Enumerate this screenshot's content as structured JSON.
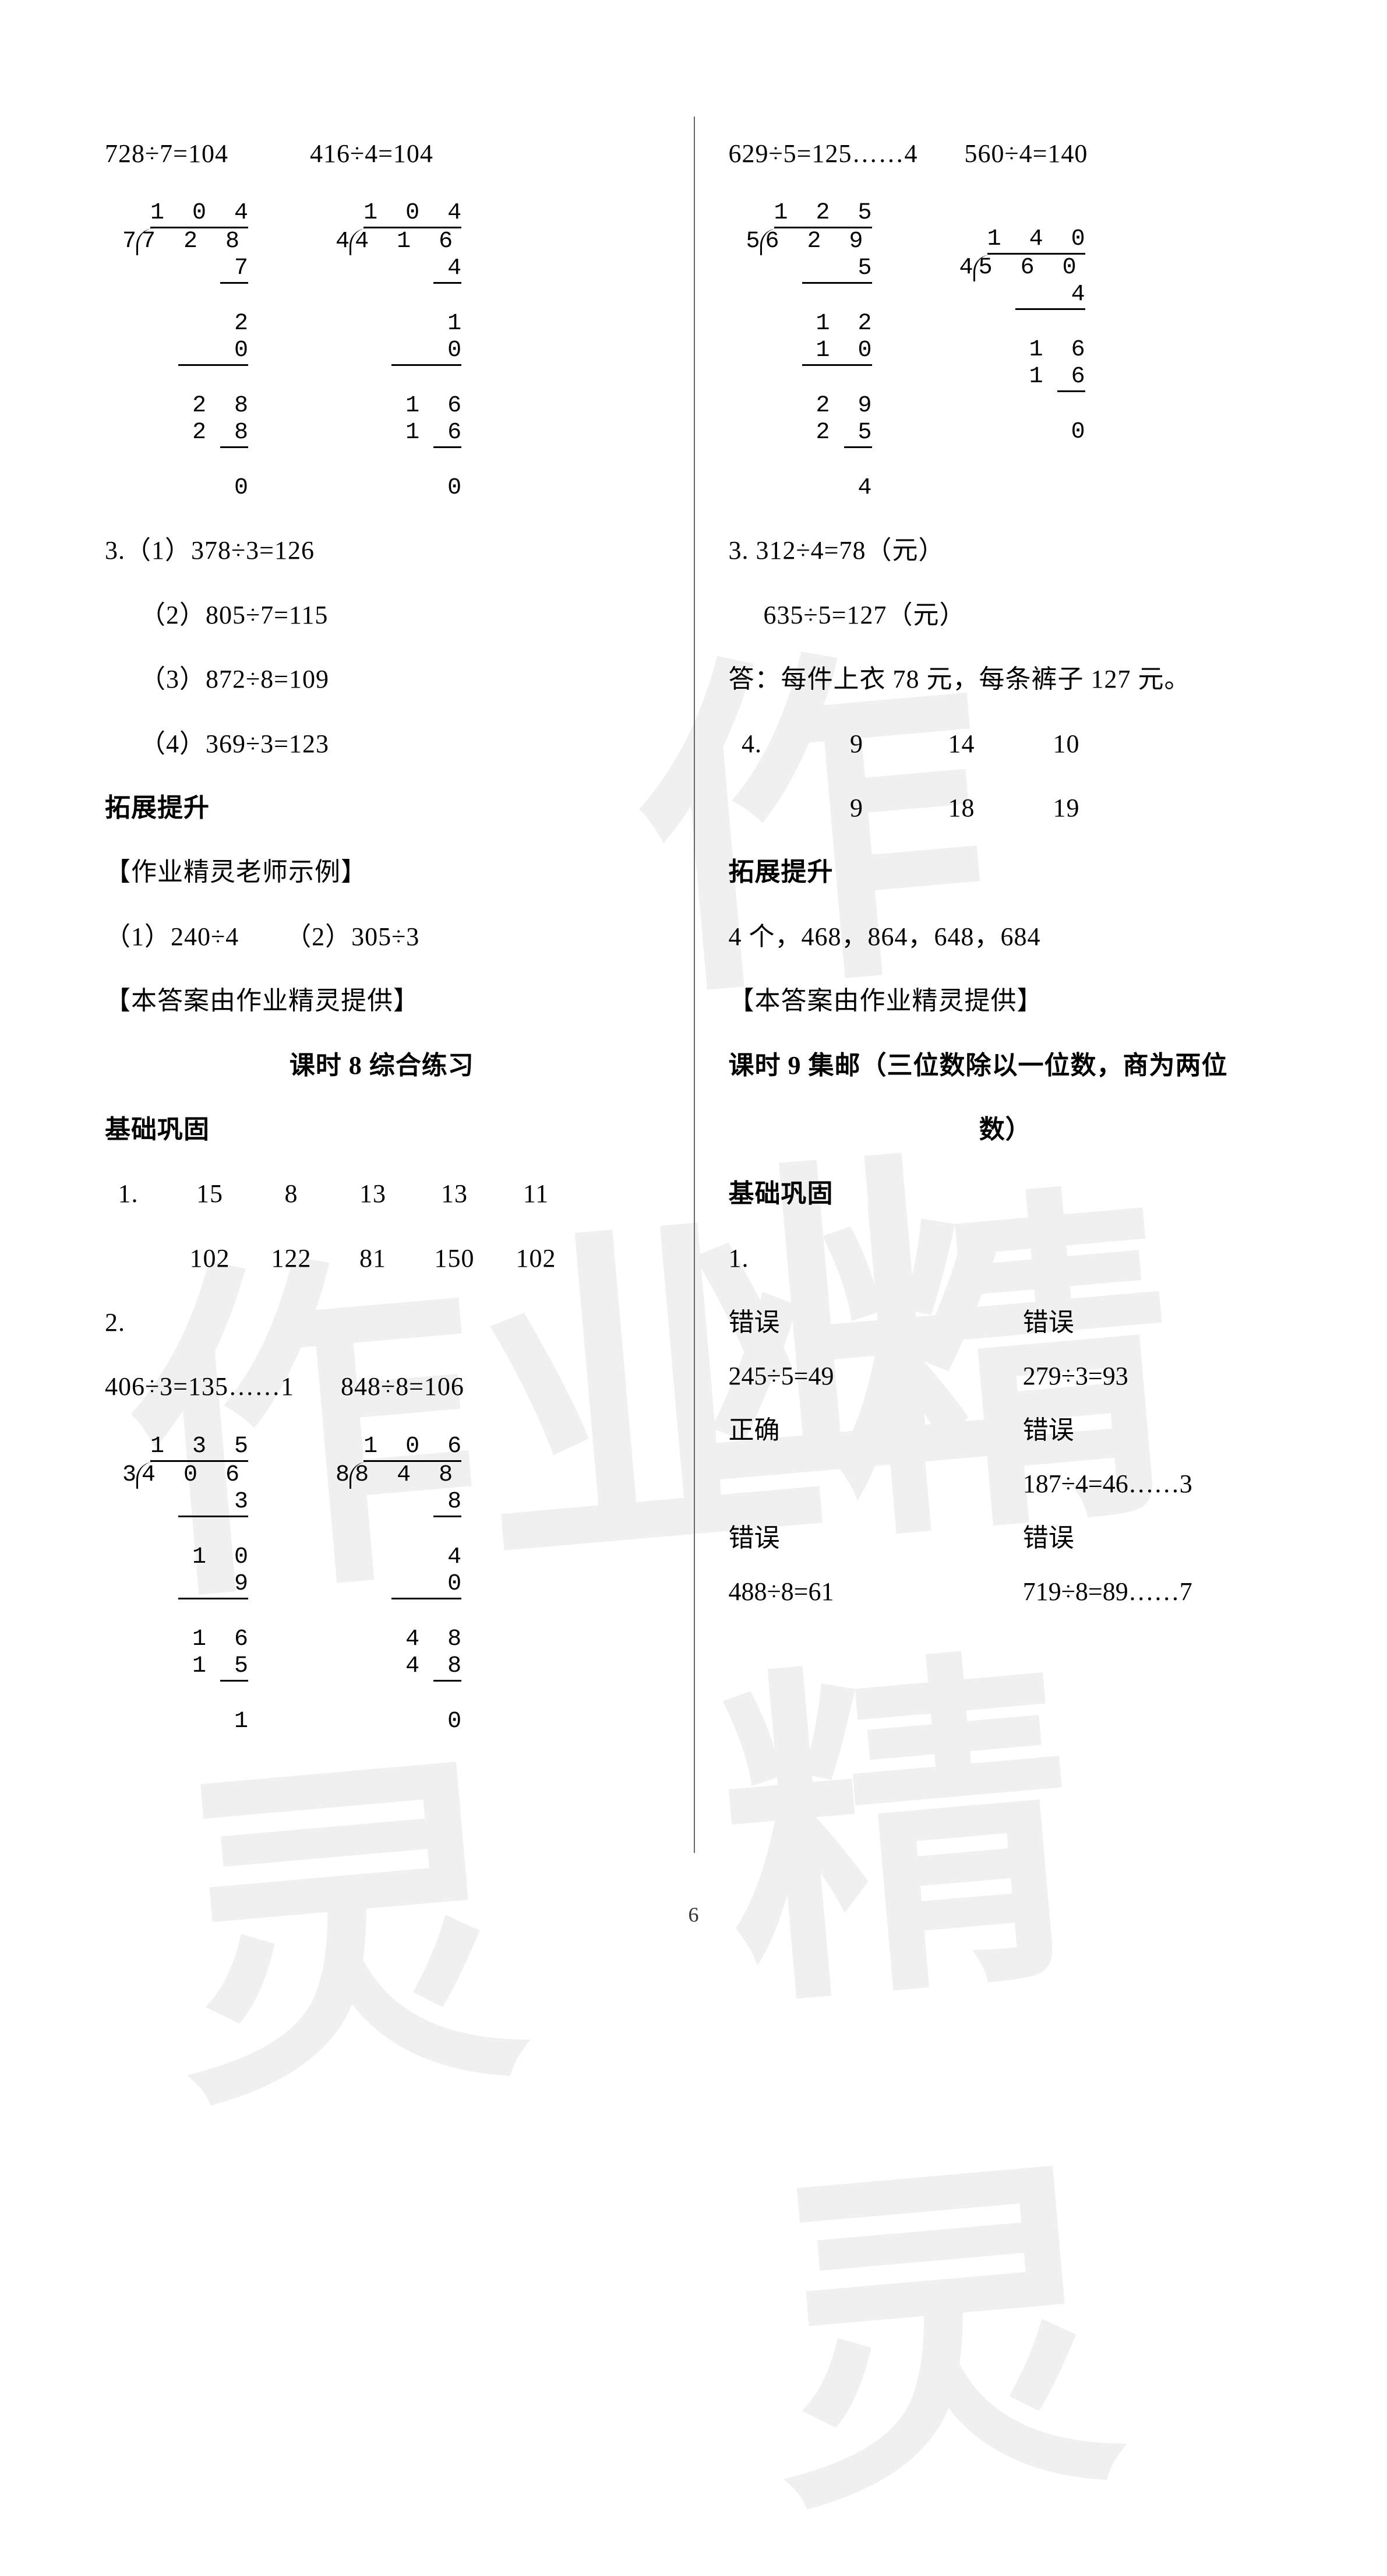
{
  "page_number": "6",
  "watermark_text": "作业精灵",
  "left": {
    "eq1": "728÷7=104",
    "eq2": "416÷4=104",
    "longdiv1": {
      "divisor": "7",
      "dividend": "7  2  8",
      "quotient": "1  0  4",
      "lines": [
        "7",
        "  2",
        "  0",
        "  2  8",
        "  2  8",
        "     0"
      ]
    },
    "longdiv2": {
      "divisor": "4",
      "dividend": "4  1  6",
      "quotient": "1  0  4",
      "lines": [
        "4",
        "  1",
        "  0",
        "  1  6",
        "  1  6",
        "     0"
      ]
    },
    "q3_label": "3.（1）378÷3=126",
    "q3_2": "（2）805÷7=115",
    "q3_3": "（3）872÷8=109",
    "q3_4": "（4）369÷3=123",
    "section_tuozhan": "拓展提升",
    "example_label": "【作业精灵老师示例】",
    "example_1": "（1）240÷4",
    "example_2": "（2）305÷3",
    "credit": "【本答案由作业精灵提供】",
    "lesson8_title": "课时 8 综合练习",
    "section_jichu": "基础巩固",
    "q1_label": "1.",
    "q1_row1": [
      "15",
      "8",
      "13",
      "13",
      "11"
    ],
    "q1_row2": [
      "102",
      "122",
      "81",
      "150",
      "102"
    ],
    "q2_label": "2.",
    "eq3": "406÷3=135……1",
    "eq4": "848÷8=106",
    "longdiv3": {
      "divisor": "3",
      "dividend": "4  0  6",
      "quotient": "1  3  5",
      "lines": [
        "3",
        "1  0",
        "  9",
        "  1  6",
        "  1  5",
        "     1"
      ]
    },
    "longdiv4": {
      "divisor": "8",
      "dividend": "8  4  8",
      "quotient": "1  0  6",
      "lines": [
        "8",
        "  4",
        "  0",
        "  4  8",
        "  4  8",
        "     0"
      ]
    }
  },
  "right": {
    "eq1": "629÷5=125……4",
    "eq2": "560÷4=140",
    "longdiv1": {
      "divisor": "5",
      "dividend": "6  2  9",
      "quotient": "1  2  5",
      "lines": [
        "5",
        "1  2",
        "1  0",
        "  2  9",
        "  2  5",
        "     4"
      ]
    },
    "longdiv2": {
      "divisor": "4",
      "dividend": "5  6  0",
      "quotient": "1  4  0",
      "lines": [
        "4",
        "1  6",
        "1  6",
        "     0"
      ]
    },
    "q3_1": "3. 312÷4=78（元）",
    "q3_2": "635÷5=127（元）",
    "q3_ans": "答：每件上衣 78 元，每条裤子 127 元。",
    "q4_label": "4.",
    "q4_row1": [
      "9",
      "14",
      "10"
    ],
    "q4_row2": [
      "9",
      "18",
      "19"
    ],
    "section_tuozhan": "拓展提升",
    "tuozhan_ans": "4 个，468，864，648，684",
    "credit": "【本答案由作业精灵提供】",
    "lesson9_title_1": "课时 9 集邮（三位数除以一位数，商为两位",
    "lesson9_title_2": "数）",
    "section_jichu": "基础巩固",
    "q1_label": "1.",
    "grid": [
      "错误",
      "错误",
      "245÷5=49",
      "279÷3=93",
      "正确",
      "错误",
      "",
      "187÷4=46……3",
      "错误",
      "错误",
      "488÷8=61",
      "719÷8=89……7"
    ]
  }
}
